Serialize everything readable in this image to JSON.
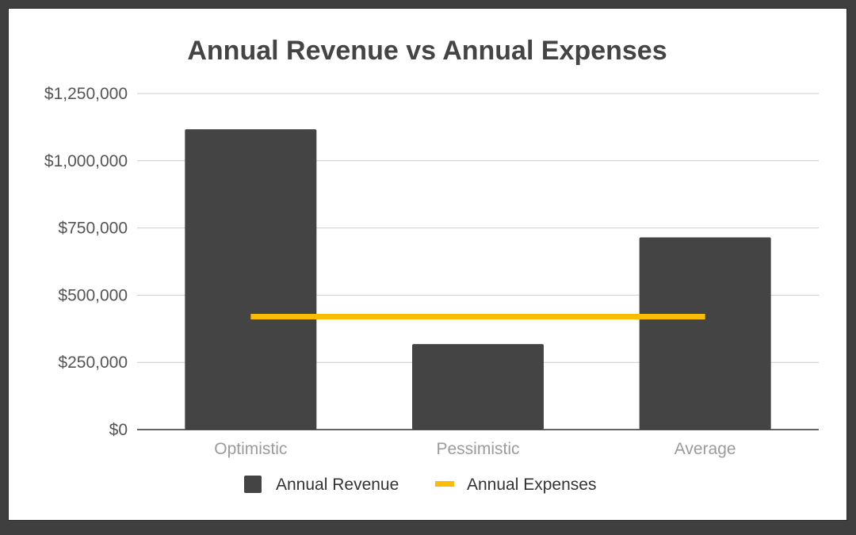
{
  "chart_data": {
    "type": "bar",
    "title": "Annual Revenue vs Annual Expenses",
    "xlabel": "",
    "ylabel": "",
    "categories": [
      "Optimistic",
      "Pessimistic",
      "Average"
    ],
    "ylim": [
      0,
      1250000
    ],
    "yticks": [
      0,
      250000,
      500000,
      750000,
      1000000,
      1250000
    ],
    "ytick_labels": [
      "$0",
      "$250,000",
      "$500,000",
      "$750,000",
      "$1,000,000",
      "$1,250,000"
    ],
    "grid": true,
    "legend_position": "bottom",
    "series": [
      {
        "name": "Annual Revenue",
        "kind": "bar",
        "color": "#444444",
        "values": [
          1117000,
          318000,
          715000
        ]
      },
      {
        "name": "Annual Expenses",
        "kind": "line",
        "color": "#fbbc04",
        "values": [
          420000,
          420000,
          420000
        ]
      }
    ]
  }
}
